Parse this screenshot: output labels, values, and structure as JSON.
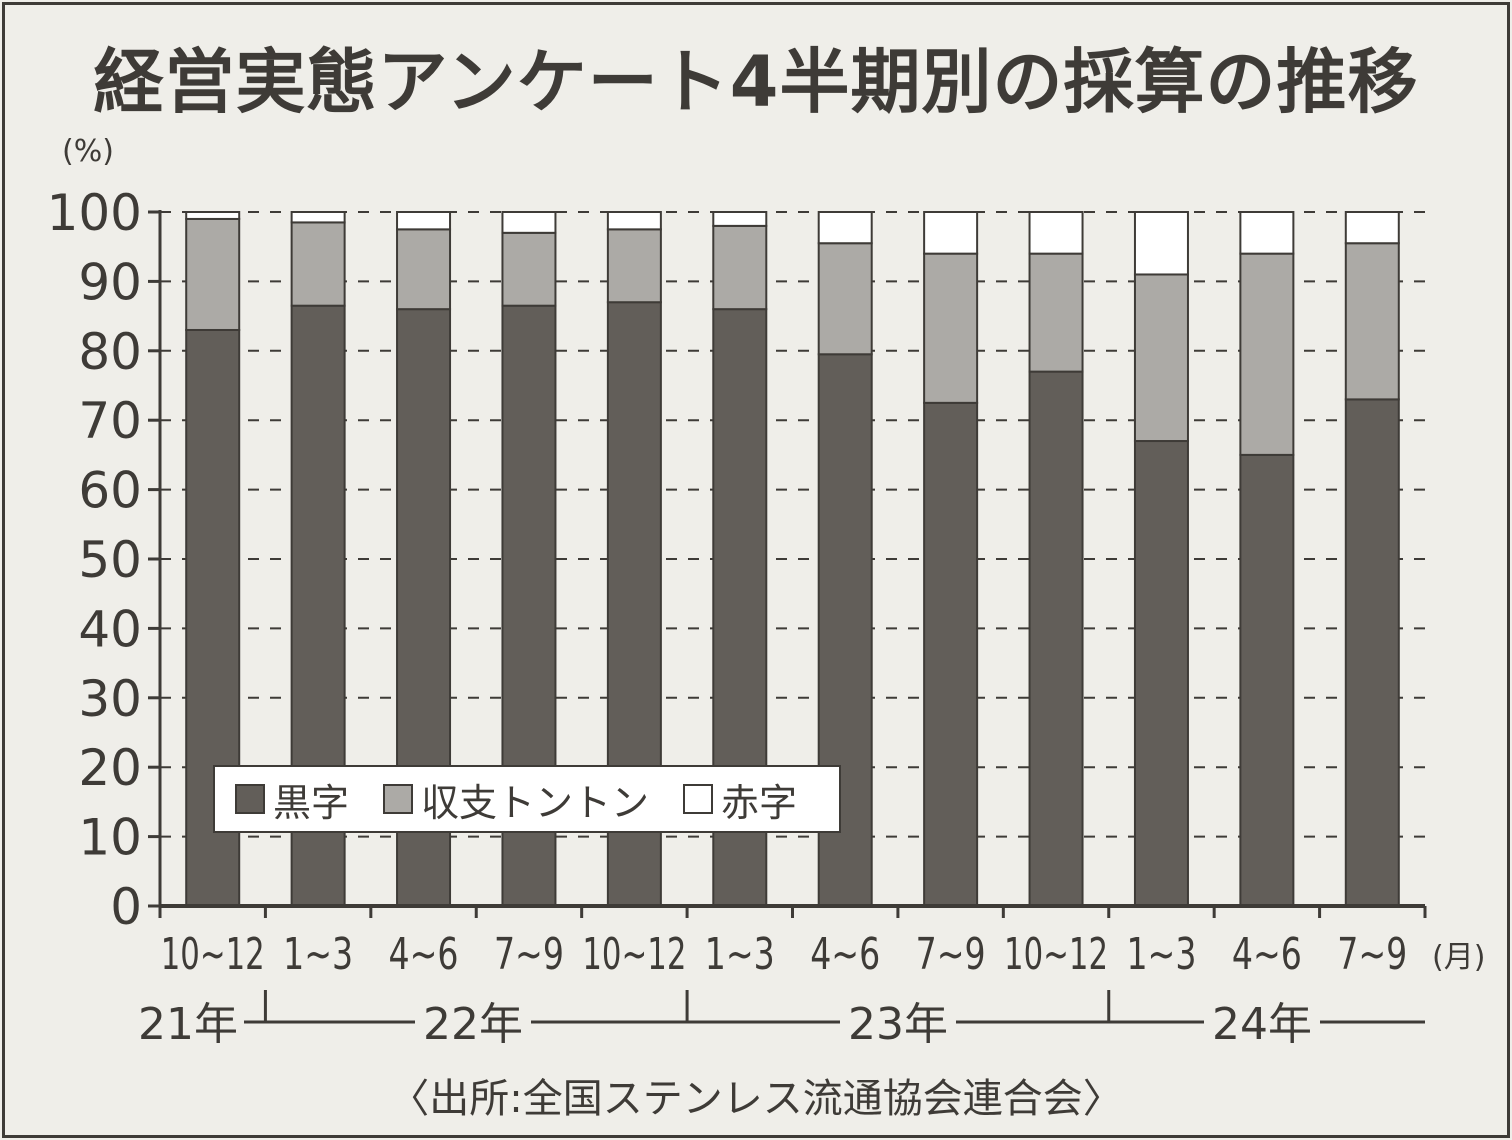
{
  "title": "経営実態アンケート4半期別の採算の推移",
  "y_unit_label": "(%)",
  "x_unit_label": "(月)",
  "source": "〈出所:全国ステンレス流通協会連合会〉",
  "legend": [
    {
      "label": "黒字",
      "color": "#625e59"
    },
    {
      "label": "収支トントン",
      "color": "#acaaa6"
    },
    {
      "label": "赤字",
      "color": "#ffffff"
    }
  ],
  "years": [
    "21年",
    "22年",
    "23年",
    "24年"
  ],
  "chart_data": {
    "type": "bar",
    "stacked": true,
    "categories": [
      "10~12",
      "1~3",
      "4~6",
      "7~9",
      "10~12",
      "1~3",
      "4~6",
      "7~9",
      "10~12",
      "1~3",
      "4~6",
      "7~9"
    ],
    "category_years": [
      "21年",
      "22年",
      "22年",
      "22年",
      "22年",
      "23年",
      "23年",
      "23年",
      "23年",
      "24年",
      "24年",
      "24年"
    ],
    "series": [
      {
        "name": "黒字",
        "values": [
          83,
          86.5,
          86,
          86.5,
          87,
          86,
          79.5,
          72.5,
          77,
          67,
          65,
          73
        ]
      },
      {
        "name": "収支トントン",
        "values": [
          16,
          12,
          11.5,
          10.5,
          10.5,
          12,
          16,
          21.5,
          17,
          24,
          29,
          22.5
        ]
      },
      {
        "name": "赤字",
        "values": [
          1,
          1.5,
          2.5,
          3,
          2.5,
          2,
          4.5,
          6,
          6,
          9,
          6,
          4.5
        ]
      }
    ],
    "ylim": [
      0,
      100
    ],
    "yticks": [
      0,
      10,
      20,
      30,
      40,
      50,
      60,
      70,
      80,
      90,
      100
    ],
    "ylabel": "(%)",
    "xlabel": "(月)",
    "grid": "horizontal-dashed",
    "legend_position": "bottom-left"
  }
}
